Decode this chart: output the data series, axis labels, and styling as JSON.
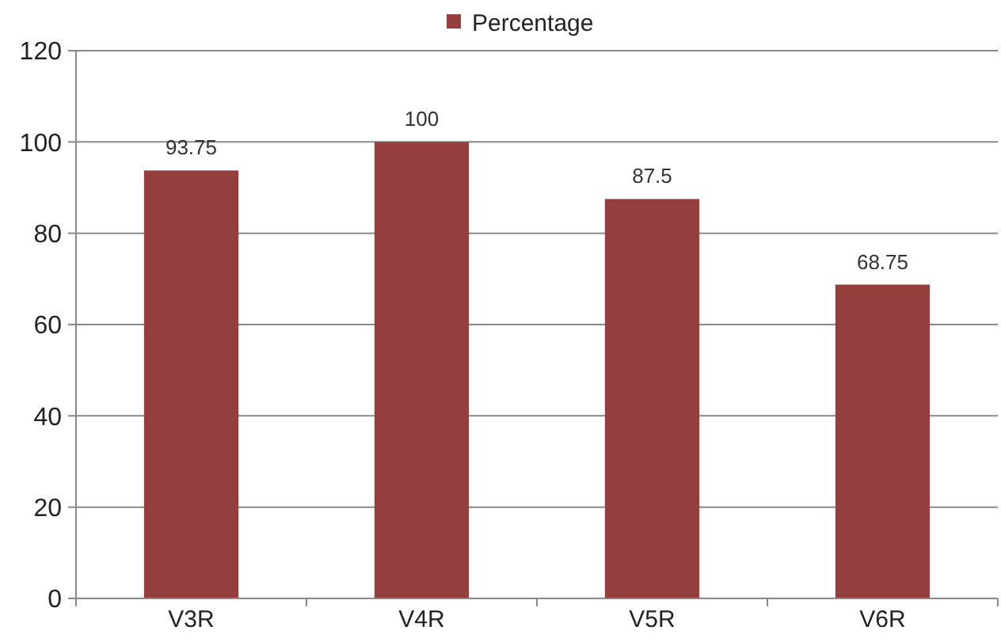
{
  "chart_data": {
    "type": "bar",
    "categories": [
      "V3R",
      "V4R",
      "V5R",
      "V6R"
    ],
    "series": [
      {
        "name": "Percentage",
        "color": "#943f3d",
        "values": [
          93.75,
          100,
          87.5,
          68.75
        ]
      }
    ],
    "ylim": [
      0,
      120
    ],
    "yticks": [
      0,
      20,
      40,
      60,
      80,
      100,
      120
    ],
    "grid": "y",
    "legend": "top",
    "data_labels": true
  }
}
